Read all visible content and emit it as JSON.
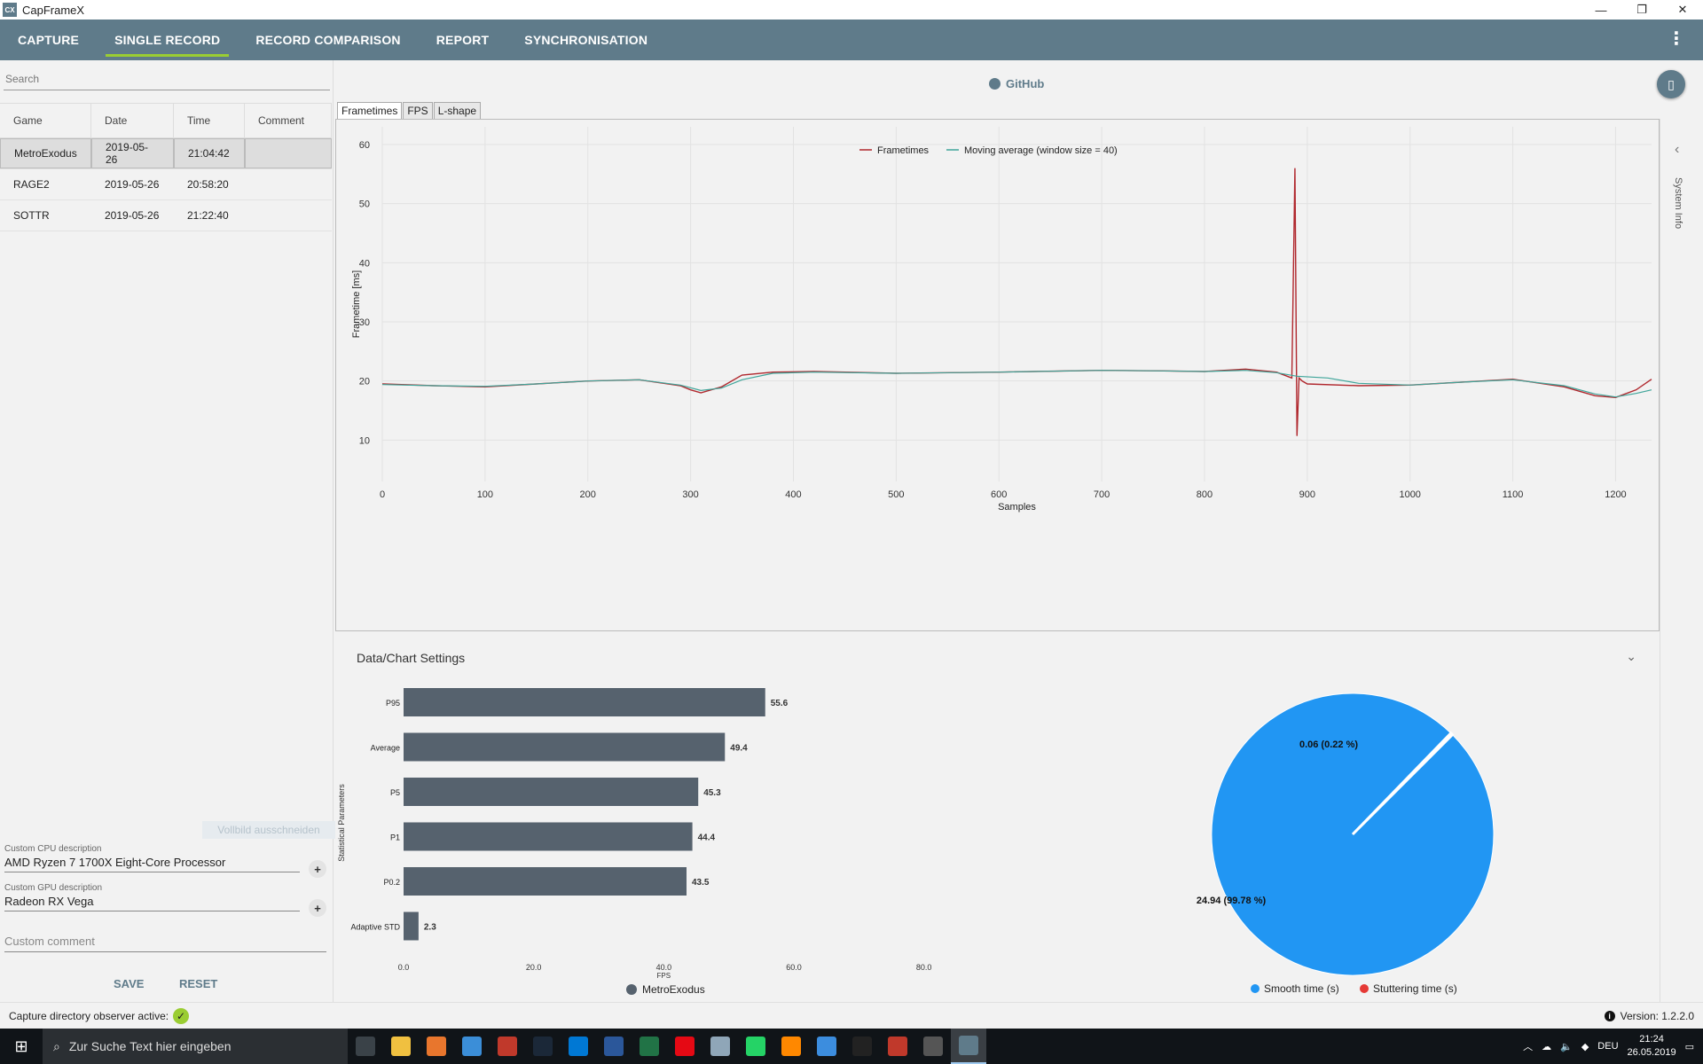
{
  "window": {
    "title": "CapFrameX",
    "icon_text": "CX",
    "controls": [
      "—",
      "❐",
      "✕"
    ]
  },
  "nav": {
    "tabs": [
      {
        "label": "CAPTURE",
        "active": false
      },
      {
        "label": "SINGLE RECORD",
        "active": true
      },
      {
        "label": "RECORD COMPARISON",
        "active": false
      },
      {
        "label": "REPORT",
        "active": false
      },
      {
        "label": "SYNCHRONISATION",
        "active": false
      }
    ],
    "menu_glyph": "⋮"
  },
  "left": {
    "search_placeholder": "Search",
    "columns": [
      "Game",
      "Date",
      "Time",
      "Comment"
    ],
    "records": [
      {
        "game": "MetroExodus",
        "date": "2019-05-26",
        "time": "21:04:42",
        "comment": ""
      },
      {
        "game": "RAGE2",
        "date": "2019-05-26",
        "time": "20:58:20",
        "comment": ""
      },
      {
        "game": "SOTTR",
        "date": "2019-05-26",
        "time": "21:22:40",
        "comment": ""
      }
    ],
    "ghost_tooltip": "Vollbild ausschneiden",
    "cpu_label": "Custom CPU description",
    "cpu_value": "AMD Ryzen 7 1700X Eight-Core Processor",
    "gpu_label": "Custom GPU description",
    "gpu_value": "Radeon RX Vega",
    "comment_placeholder": "Custom comment",
    "save": "SAVE",
    "reset": "RESET",
    "plus_glyph": "+"
  },
  "github": {
    "label": "GitHub"
  },
  "chart_tabs": [
    {
      "label": "Frametimes",
      "active": true
    },
    {
      "label": "FPS",
      "active": false
    },
    {
      "label": "L-shape",
      "active": false
    }
  ],
  "side": {
    "label": "System Info",
    "arrow": "‹"
  },
  "settings": {
    "label": "Data/Chart Settings",
    "chevron": "⌄"
  },
  "colors": {
    "nav": "#5f7b8a",
    "accent": "#9acd32",
    "frametime": "#b0272d",
    "moving_avg": "#3fa59a",
    "bar": "#56626e",
    "smooth": "#2196f3",
    "stutter": "#e53935"
  },
  "chart_data": [
    {
      "type": "line",
      "title": "",
      "xlabel": "Samples",
      "ylabel": "Frametime [ms]",
      "xlim": [
        0,
        1235
      ],
      "ylim": [
        3,
        63
      ],
      "xticks": [
        0,
        100,
        200,
        300,
        400,
        500,
        600,
        700,
        800,
        900,
        1000,
        1100,
        1200
      ],
      "yticks": [
        10,
        20,
        30,
        40,
        50,
        60
      ],
      "grid": true,
      "legend": "top-center",
      "series": [
        {
          "name": "Frametimes",
          "x": [
            0,
            50,
            100,
            150,
            200,
            250,
            290,
            300,
            310,
            330,
            350,
            380,
            420,
            500,
            600,
            700,
            760,
            800,
            840,
            870,
            885,
            888,
            890,
            892,
            895,
            900,
            950,
            1000,
            1050,
            1100,
            1150,
            1180,
            1200,
            1220,
            1235
          ],
          "y": [
            19.5,
            19.2,
            19.0,
            19.5,
            20.0,
            20.2,
            19.2,
            18.5,
            18.0,
            19.0,
            21.0,
            21.5,
            21.6,
            21.3,
            21.5,
            21.8,
            21.7,
            21.6,
            22.0,
            21.5,
            20.5,
            56.0,
            10.7,
            20.5,
            20.0,
            19.5,
            19.2,
            19.3,
            19.8,
            20.3,
            19.0,
            17.5,
            17.2,
            18.5,
            20.3
          ]
        },
        {
          "name": "Moving average (window size = 40)",
          "x": [
            0,
            50,
            100,
            150,
            200,
            250,
            290,
            310,
            330,
            350,
            380,
            420,
            500,
            600,
            700,
            760,
            800,
            840,
            870,
            890,
            920,
            950,
            1000,
            1050,
            1100,
            1150,
            1180,
            1200,
            1220,
            1235
          ],
          "y": [
            19.4,
            19.2,
            19.1,
            19.5,
            20.0,
            20.2,
            19.3,
            18.4,
            18.8,
            20.2,
            21.3,
            21.5,
            21.3,
            21.5,
            21.8,
            21.7,
            21.6,
            21.8,
            21.4,
            20.8,
            20.5,
            19.6,
            19.3,
            19.8,
            20.2,
            19.2,
            17.8,
            17.3,
            17.9,
            18.5
          ]
        }
      ]
    },
    {
      "type": "bar",
      "orientation": "horizontal",
      "xlabel": "FPS",
      "ylabel": "Statistical Parameters",
      "categories": [
        "P95",
        "Average",
        "P5",
        "P1",
        "P0.2",
        "Adaptive STD"
      ],
      "values": [
        55.6,
        49.4,
        45.3,
        44.4,
        43.5,
        2.3
      ],
      "xlim": [
        0,
        90
      ],
      "xticks": [
        "0.0",
        "20.0",
        "40.0",
        "60.0",
        "80.0"
      ],
      "legend": "bottom-center",
      "series": [
        {
          "name": "MetroExodus"
        }
      ]
    },
    {
      "type": "pie",
      "labels": [
        "Smooth time (s)",
        "Stuttering time (s)"
      ],
      "values": [
        24.94,
        0.06
      ],
      "data_labels": [
        "24.94 (99.78 %)",
        "0.06 (0.22 %)"
      ],
      "legend": "bottom-center"
    }
  ],
  "status": {
    "text": "Capture directory observer active:",
    "check": "✓",
    "version": "Version:  1.2.2.0",
    "info_glyph": "i"
  },
  "taskbar": {
    "search_placeholder": "Zur Suche Text hier eingeben",
    "start_glyph": "⊞",
    "search_glyph": "⌕",
    "lang": "DEU",
    "time": "21:24",
    "date": "26.05.2019",
    "apps": [
      "task-view",
      "explorer",
      "firefox",
      "calculator",
      "media",
      "steam",
      "outlook",
      "word",
      "excel",
      "netflix",
      "paint",
      "whatsapp",
      "vlc",
      "activity",
      "terminal",
      "afterburner",
      "settings",
      "capframex"
    ],
    "app_colors": [
      "#3a4248",
      "#f0c040",
      "#e8762d",
      "#3b8ed8",
      "#c0392b",
      "#1b2838",
      "#0078d4",
      "#2b579a",
      "#217346",
      "#e50914",
      "#8fa6b8",
      "#25d366",
      "#ff8800",
      "#3c8dde",
      "#222222",
      "#c0392b",
      "#555555",
      "#5f7b8a"
    ]
  }
}
